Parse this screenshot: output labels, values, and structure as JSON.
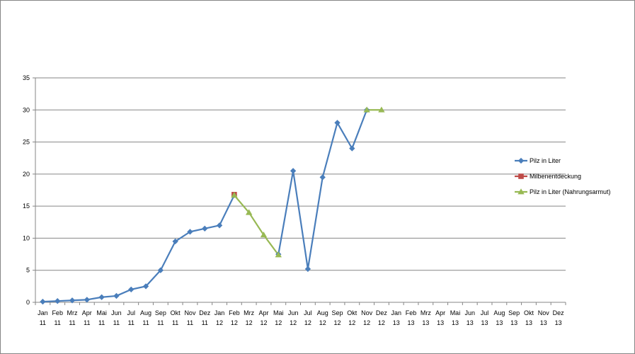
{
  "chart_data": {
    "type": "line",
    "title": "",
    "xlabel": "",
    "ylabel": "",
    "ylim": [
      0,
      35
    ],
    "yticks": [
      0,
      5,
      10,
      15,
      20,
      25,
      30,
      35
    ],
    "grid": "horizontal",
    "legend_position": "right",
    "categories": [
      "Jan 11",
      "Feb 11",
      "Mrz 11",
      "Apr 11",
      "Mai 11",
      "Jun 11",
      "Jul 11",
      "Aug 11",
      "Sep 11",
      "Okt 11",
      "Nov 11",
      "Dez 11",
      "Jan 12",
      "Feb 12",
      "Mrz 12",
      "Apr 12",
      "Mai 12",
      "Jun 12",
      "Jul 12",
      "Aug 12",
      "Sep 12",
      "Okt 12",
      "Nov 12",
      "Dez 12",
      "Jan 13",
      "Feb 13",
      "Mrz 13",
      "Apr 13",
      "Mai 13",
      "Jun 13",
      "Jul 13",
      "Aug 13",
      "Sep 13",
      "Okt 13",
      "Nov 13",
      "Dez 13"
    ],
    "series": [
      {
        "name": "Pilz in Liter",
        "color": "#4a7ebb",
        "marker": "diamond",
        "values": [
          0.1,
          0.2,
          0.3,
          0.4,
          0.8,
          1.0,
          2.0,
          2.5,
          5.0,
          9.5,
          11.0,
          11.5,
          12.0,
          16.7,
          null,
          null,
          7.5,
          20.5,
          5.2,
          19.5,
          28.0,
          24.0,
          30.0,
          null,
          null,
          null,
          null,
          null,
          null,
          null,
          null,
          null,
          null,
          null,
          null,
          null
        ]
      },
      {
        "name": "Milbenentdeckung",
        "color": "#be4b48",
        "marker": "square",
        "values": [
          null,
          null,
          null,
          null,
          null,
          null,
          null,
          null,
          null,
          null,
          null,
          null,
          null,
          16.8,
          null,
          null,
          null,
          null,
          null,
          null,
          null,
          null,
          null,
          null,
          null,
          null,
          null,
          null,
          null,
          null,
          null,
          null,
          null,
          null,
          null,
          null
        ]
      },
      {
        "name": "Pilz in Liter (Nahrungsarmut)",
        "color": "#98b954",
        "marker": "triangle",
        "values": [
          null,
          null,
          null,
          null,
          null,
          null,
          null,
          null,
          null,
          null,
          null,
          null,
          null,
          16.7,
          14.0,
          10.5,
          7.4,
          null,
          null,
          null,
          null,
          null,
          30.0,
          30.0,
          null,
          null,
          null,
          null,
          null,
          null,
          null,
          null,
          null,
          null,
          null,
          null
        ]
      }
    ]
  }
}
